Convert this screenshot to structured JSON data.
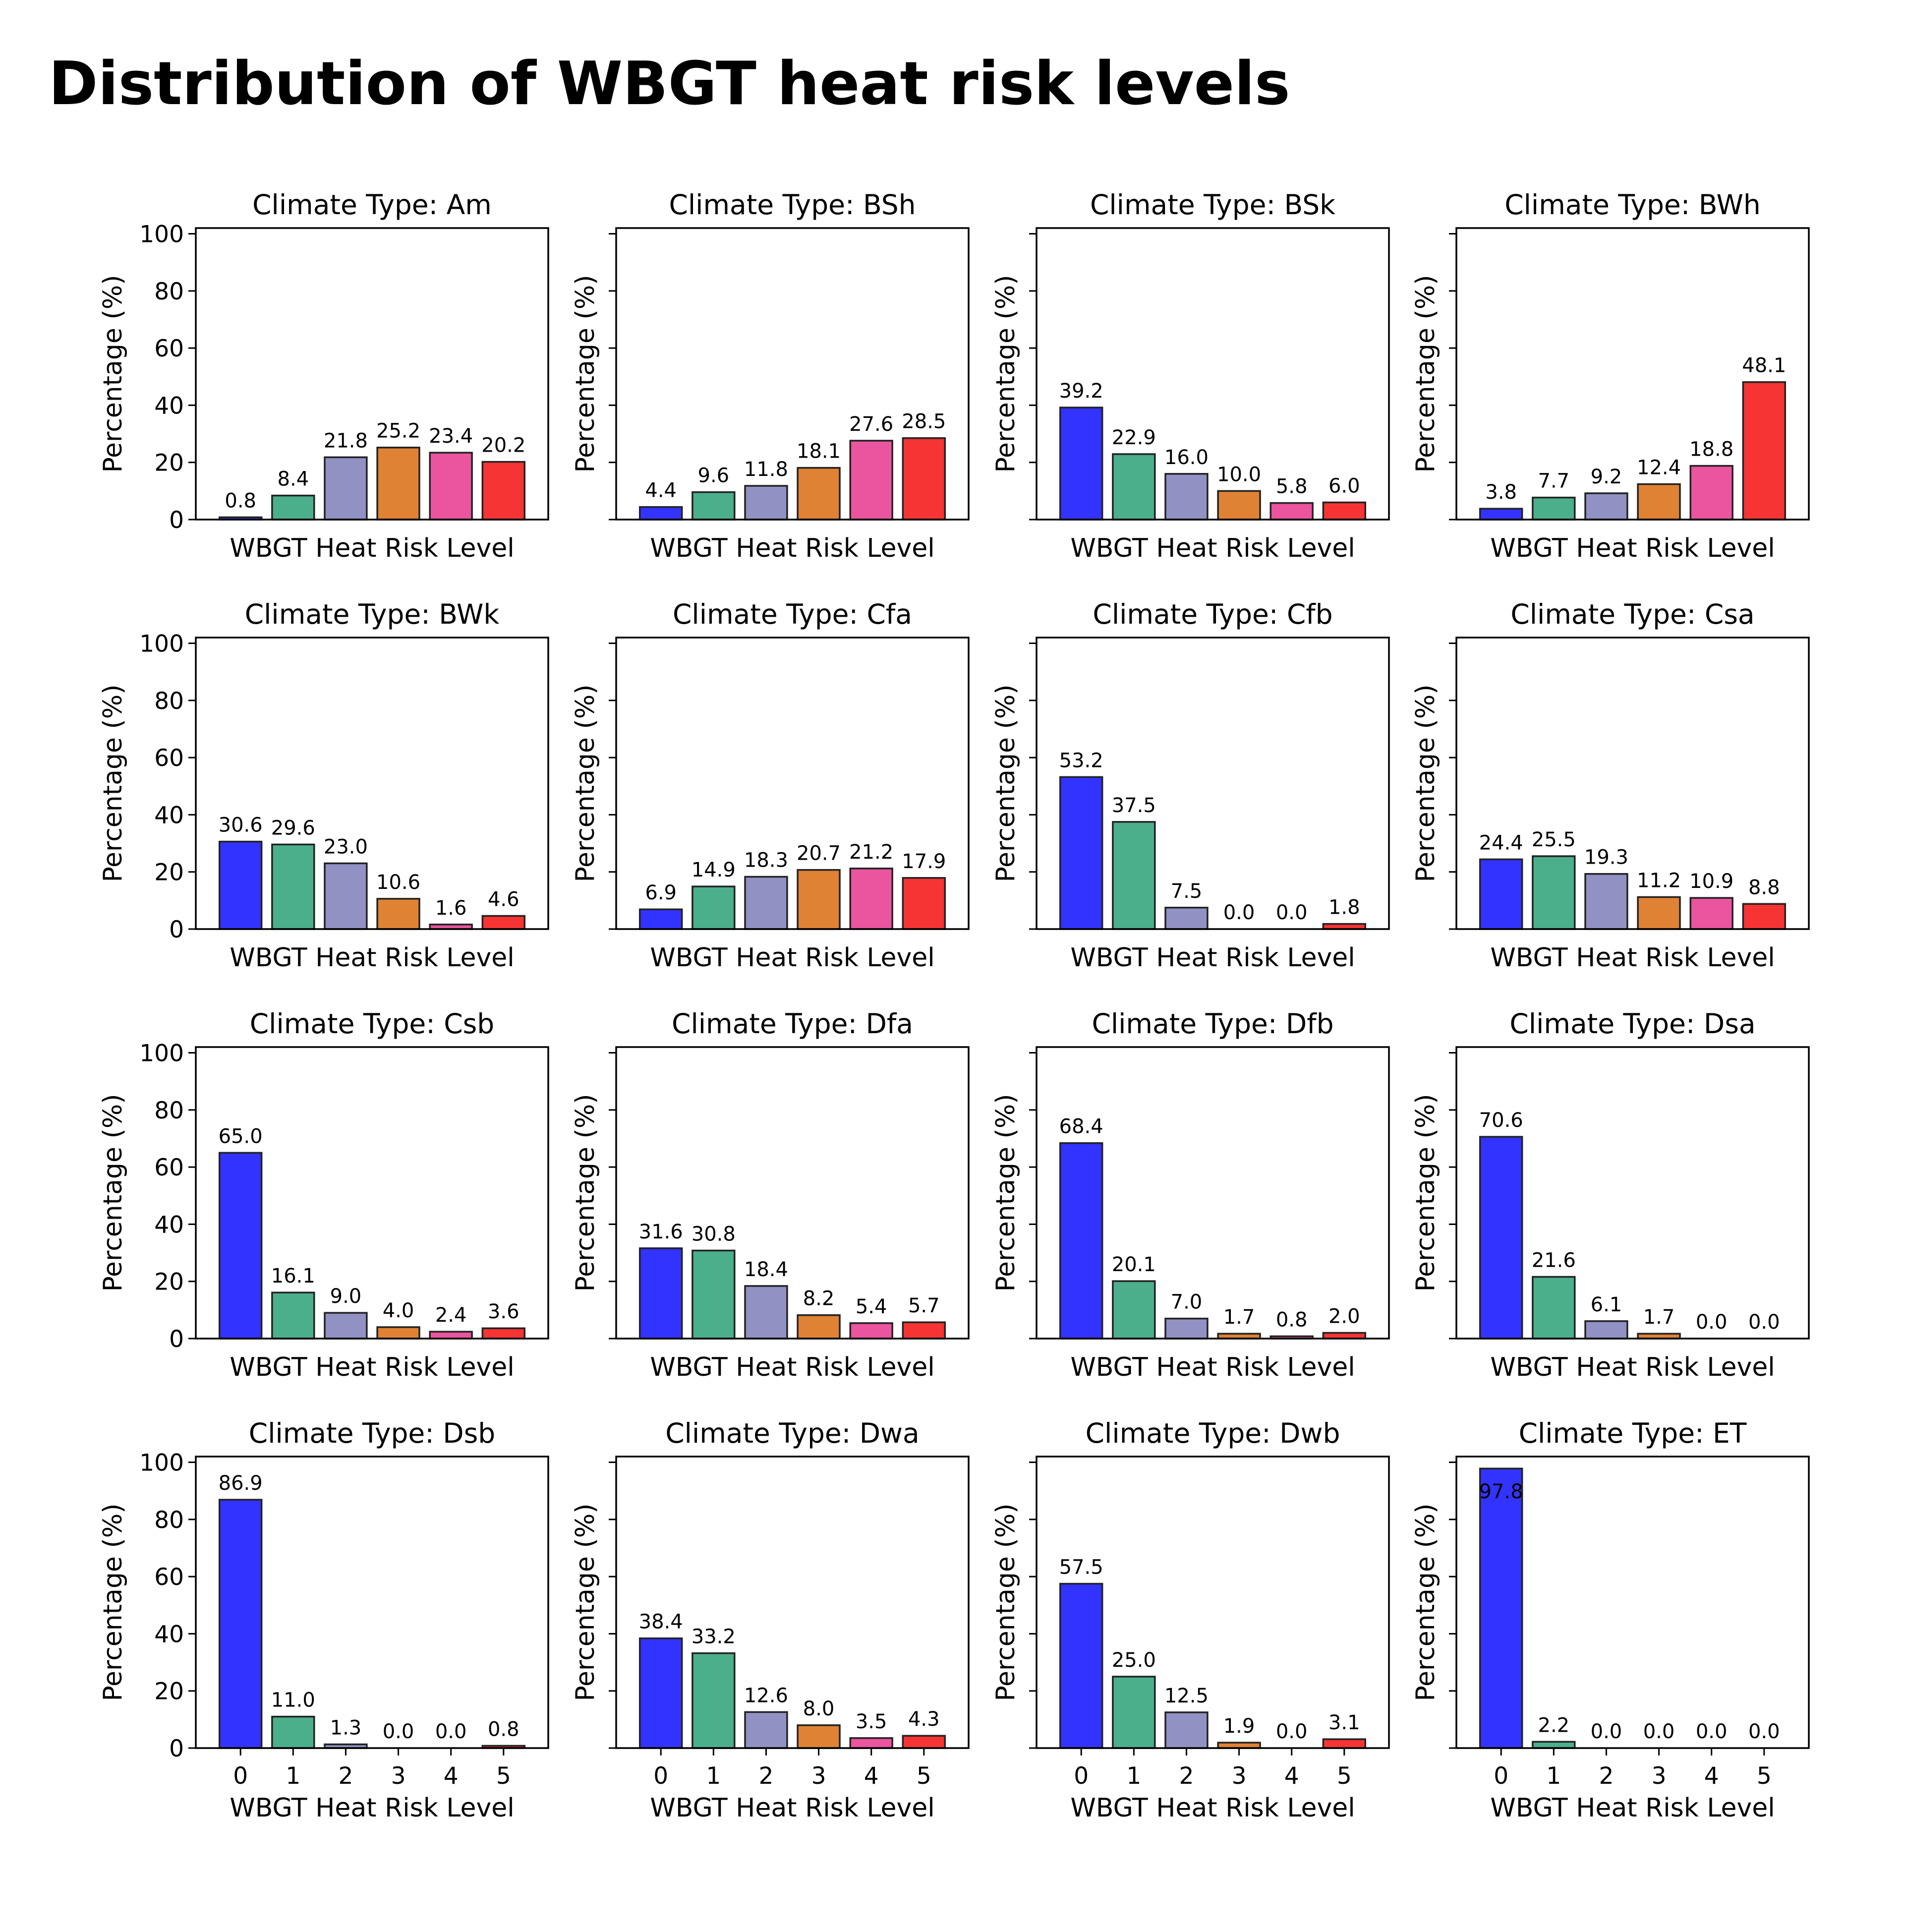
{
  "title": "Distribution of WBGT heat risk levels",
  "colors": [
    "#3333ff",
    "#4caf8c",
    "#9191c4",
    "#e08234",
    "#eb559f",
    "#f73434"
  ],
  "chart_data": [
    {
      "type": "bar",
      "title": "Climate Type: Am",
      "categories": [
        "0",
        "1",
        "2",
        "3",
        "4",
        "5"
      ],
      "values": [
        0.8,
        8.4,
        21.8,
        25.2,
        23.4,
        20.2
      ],
      "xlabel": "WBGT Heat Risk Level",
      "ylabel": "Percentage (%)",
      "ylim": [
        0,
        102
      ],
      "yticks": [
        0,
        20,
        40,
        60,
        80,
        100
      ]
    },
    {
      "type": "bar",
      "title": "Climate Type: BSh",
      "categories": [
        "0",
        "1",
        "2",
        "3",
        "4",
        "5"
      ],
      "values": [
        4.4,
        9.6,
        11.8,
        18.1,
        27.6,
        28.5
      ],
      "xlabel": "WBGT Heat Risk Level",
      "ylabel": "Percentage (%)",
      "ylim": [
        0,
        102
      ]
    },
    {
      "type": "bar",
      "title": "Climate Type: BSk",
      "categories": [
        "0",
        "1",
        "2",
        "3",
        "4",
        "5"
      ],
      "values": [
        39.2,
        22.9,
        16.0,
        10.0,
        5.8,
        6.0
      ],
      "xlabel": "WBGT Heat Risk Level",
      "ylabel": "Percentage (%)",
      "ylim": [
        0,
        102
      ]
    },
    {
      "type": "bar",
      "title": "Climate Type: BWh",
      "categories": [
        "0",
        "1",
        "2",
        "3",
        "4",
        "5"
      ],
      "values": [
        3.8,
        7.7,
        9.2,
        12.4,
        18.8,
        48.1
      ],
      "xlabel": "WBGT Heat Risk Level",
      "ylabel": "Percentage (%)",
      "ylim": [
        0,
        102
      ]
    },
    {
      "type": "bar",
      "title": "Climate Type: BWk",
      "categories": [
        "0",
        "1",
        "2",
        "3",
        "4",
        "5"
      ],
      "values": [
        30.6,
        29.6,
        23.0,
        10.6,
        1.6,
        4.6
      ],
      "xlabel": "WBGT Heat Risk Level",
      "ylabel": "Percentage (%)",
      "ylim": [
        0,
        102
      ],
      "yticks": [
        0,
        20,
        40,
        60,
        80,
        100
      ]
    },
    {
      "type": "bar",
      "title": "Climate Type: Cfa",
      "categories": [
        "0",
        "1",
        "2",
        "3",
        "4",
        "5"
      ],
      "values": [
        6.9,
        14.9,
        18.3,
        20.7,
        21.2,
        17.9
      ],
      "xlabel": "WBGT Heat Risk Level",
      "ylabel": "Percentage (%)",
      "ylim": [
        0,
        102
      ]
    },
    {
      "type": "bar",
      "title": "Climate Type: Cfb",
      "categories": [
        "0",
        "1",
        "2",
        "3",
        "4",
        "5"
      ],
      "values": [
        53.2,
        37.5,
        7.5,
        0.0,
        0.0,
        1.8
      ],
      "xlabel": "WBGT Heat Risk Level",
      "ylabel": "Percentage (%)",
      "ylim": [
        0,
        102
      ]
    },
    {
      "type": "bar",
      "title": "Climate Type: Csa",
      "categories": [
        "0",
        "1",
        "2",
        "3",
        "4",
        "5"
      ],
      "values": [
        24.4,
        25.5,
        19.3,
        11.2,
        10.9,
        8.8
      ],
      "xlabel": "WBGT Heat Risk Level",
      "ylabel": "Percentage (%)",
      "ylim": [
        0,
        102
      ]
    },
    {
      "type": "bar",
      "title": "Climate Type: Csb",
      "categories": [
        "0",
        "1",
        "2",
        "3",
        "4",
        "5"
      ],
      "values": [
        65.0,
        16.1,
        9.0,
        4.0,
        2.4,
        3.6
      ],
      "xlabel": "WBGT Heat Risk Level",
      "ylabel": "Percentage (%)",
      "ylim": [
        0,
        102
      ],
      "yticks": [
        0,
        20,
        40,
        60,
        80,
        100
      ]
    },
    {
      "type": "bar",
      "title": "Climate Type: Dfa",
      "categories": [
        "0",
        "1",
        "2",
        "3",
        "4",
        "5"
      ],
      "values": [
        31.6,
        30.8,
        18.4,
        8.2,
        5.4,
        5.7
      ],
      "xlabel": "WBGT Heat Risk Level",
      "ylabel": "Percentage (%)",
      "ylim": [
        0,
        102
      ]
    },
    {
      "type": "bar",
      "title": "Climate Type: Dfb",
      "categories": [
        "0",
        "1",
        "2",
        "3",
        "4",
        "5"
      ],
      "values": [
        68.4,
        20.1,
        7.0,
        1.7,
        0.8,
        2.0
      ],
      "xlabel": "WBGT Heat Risk Level",
      "ylabel": "Percentage (%)",
      "ylim": [
        0,
        102
      ]
    },
    {
      "type": "bar",
      "title": "Climate Type: Dsa",
      "categories": [
        "0",
        "1",
        "2",
        "3",
        "4",
        "5"
      ],
      "values": [
        70.6,
        21.6,
        6.1,
        1.7,
        0.0,
        0.0
      ],
      "xlabel": "WBGT Heat Risk Level",
      "ylabel": "Percentage (%)",
      "ylim": [
        0,
        102
      ]
    },
    {
      "type": "bar",
      "title": "Climate Type: Dsb",
      "categories": [
        "0",
        "1",
        "2",
        "3",
        "4",
        "5"
      ],
      "values": [
        86.9,
        11.0,
        1.3,
        0.0,
        0.0,
        0.8
      ],
      "xlabel": "WBGT Heat Risk Level",
      "ylabel": "Percentage (%)",
      "ylim": [
        0,
        102
      ],
      "yticks": [
        0,
        20,
        40,
        60,
        80,
        100
      ],
      "show_xticks": true
    },
    {
      "type": "bar",
      "title": "Climate Type: Dwa",
      "categories": [
        "0",
        "1",
        "2",
        "3",
        "4",
        "5"
      ],
      "values": [
        38.4,
        33.2,
        12.6,
        8.0,
        3.5,
        4.3
      ],
      "xlabel": "WBGT Heat Risk Level",
      "ylabel": "Percentage (%)",
      "ylim": [
        0,
        102
      ],
      "show_xticks": true
    },
    {
      "type": "bar",
      "title": "Climate Type: Dwb",
      "categories": [
        "0",
        "1",
        "2",
        "3",
        "4",
        "5"
      ],
      "values": [
        57.5,
        25.0,
        12.5,
        1.9,
        0.0,
        3.1
      ],
      "xlabel": "WBGT Heat Risk Level",
      "ylabel": "Percentage (%)",
      "ylim": [
        0,
        102
      ],
      "show_xticks": true
    },
    {
      "type": "bar",
      "title": "Climate Type: ET",
      "categories": [
        "0",
        "1",
        "2",
        "3",
        "4",
        "5"
      ],
      "values": [
        97.8,
        2.2,
        0.0,
        0.0,
        0.0,
        0.0
      ],
      "xlabel": "WBGT Heat Risk Level",
      "ylabel": "Percentage (%)",
      "ylim": [
        0,
        102
      ],
      "show_xticks": true
    }
  ]
}
